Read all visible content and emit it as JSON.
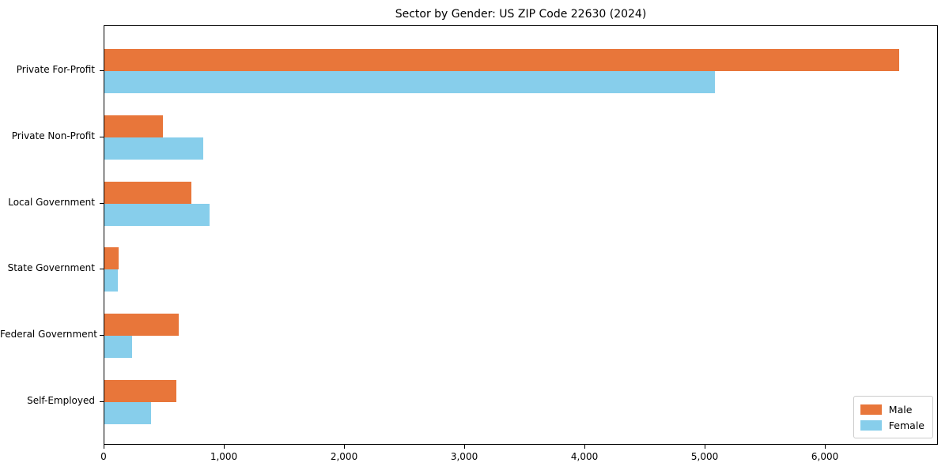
{
  "chart_data": {
    "type": "bar",
    "orientation": "horizontal",
    "title": "Sector by Gender: US ZIP Code 22630 (2024)",
    "categories": [
      "Private For-Profit",
      "Private Non-Profit",
      "Local Government",
      "State Government",
      "Federal Government",
      "Self-Employed"
    ],
    "series": [
      {
        "name": "Male",
        "color": "#E8763A",
        "values": [
          6610,
          490,
          725,
          120,
          620,
          600
        ]
      },
      {
        "name": "Female",
        "color": "#87CEEB",
        "values": [
          5080,
          820,
          875,
          110,
          230,
          390
        ]
      }
    ],
    "xlim": [
      0,
      6940
    ],
    "xticks": [
      0,
      1000,
      2000,
      3000,
      4000,
      5000,
      6000
    ],
    "xtick_labels": [
      "0",
      "1,000",
      "2,000",
      "3,000",
      "4,000",
      "5,000",
      "6,000"
    ],
    "ylabel": "",
    "xlabel": "",
    "grid": false,
    "legend": {
      "position": "lower right",
      "entries": [
        {
          "label": "Male",
          "color": "#E8763A"
        },
        {
          "label": "Female",
          "color": "#87CEEB"
        }
      ]
    }
  }
}
